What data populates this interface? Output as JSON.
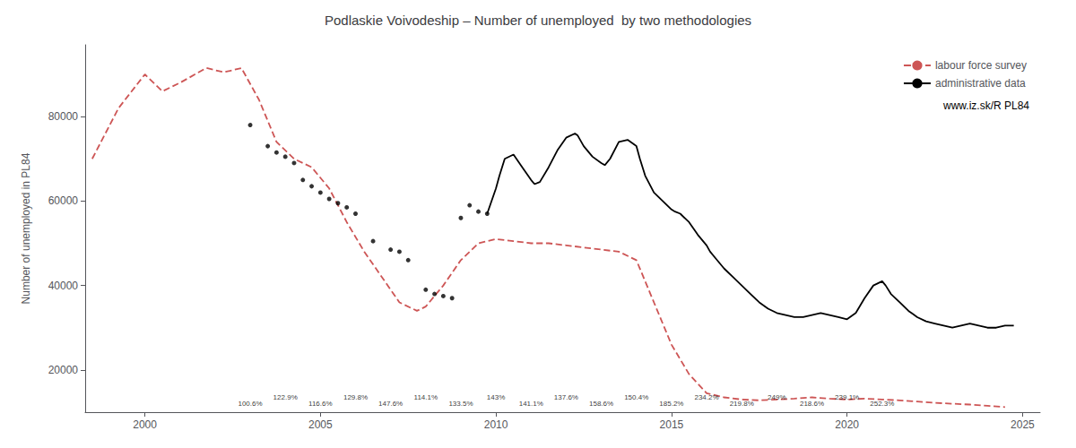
{
  "chart_data": {
    "type": "line",
    "title": "Podlaskie Voivodeship – Number of unemployed  by two methodologies",
    "ylabel": "Number of unemployed in PL84",
    "xlim": [
      1998.3,
      2025.5
    ],
    "ylim": [
      10000,
      97000
    ],
    "xticks": [
      2000,
      2005,
      2010,
      2015,
      2020,
      2025
    ],
    "yticks": [
      20000,
      40000,
      60000,
      80000
    ],
    "grid": false,
    "legend": "upper right",
    "color": "#ffffff",
    "source": "www.iz.sk/R PL84",
    "series": [
      {
        "name": "labour force survey",
        "type": "line",
        "color": "#cd5555",
        "line_style": "dashed",
        "x": [
          1998.5,
          1999.25,
          2000.0,
          2000.5,
          2001.0,
          2001.75,
          2002.25,
          2002.75,
          2003.25,
          2003.75,
          2004.25,
          2004.75,
          2005.25,
          2005.75,
          2006.25,
          2006.75,
          2007.25,
          2007.75,
          2008.0,
          2008.5,
          2009.0,
          2009.5,
          2010.0,
          2010.5,
          2011.0,
          2011.5,
          2012.0,
          2012.5,
          2013.0,
          2013.5,
          2014.0,
          2014.5,
          2015.0,
          2015.5,
          2016.0,
          2016.5,
          2017.0,
          2017.5,
          2018.0,
          2018.5,
          2019.0,
          2019.5,
          2020.0,
          2020.5,
          2021.0,
          2021.5,
          2022.0,
          2022.5,
          2023.0,
          2023.5,
          2024.0,
          2024.5
        ],
        "values": [
          70000,
          82000,
          90000,
          86000,
          88000,
          91500,
          90500,
          91500,
          84000,
          74000,
          70000,
          68000,
          63000,
          55000,
          48000,
          42000,
          36000,
          34000,
          35000,
          40000,
          46000,
          50000,
          51000,
          50500,
          50000,
          50000,
          49500,
          49000,
          48500,
          48000,
          46000,
          36000,
          26000,
          19000,
          14500,
          13500,
          13000,
          12800,
          13000,
          13200,
          13500,
          13200,
          13000,
          13200,
          13000,
          12800,
          12500,
          12200,
          12000,
          11800,
          11500,
          11200
        ]
      },
      {
        "type": "scatter",
        "color": "#000000",
        "marker": "circle",
        "x": [
          2003.0,
          2003.5,
          2003.75,
          2004.0,
          2004.25,
          2004.5,
          2004.75,
          2005.0,
          2005.25,
          2005.5,
          2005.75,
          2006.0,
          2006.5,
          2007.0,
          2007.25,
          2007.5,
          2008.0,
          2008.25,
          2008.5,
          2008.75,
          2009.0,
          2009.25,
          2009.5,
          2009.75
        ],
        "values": [
          78000,
          73000,
          71500,
          70500,
          69000,
          65000,
          63500,
          62000,
          60500,
          59500,
          58500,
          57000,
          50500,
          48500,
          48000,
          46000,
          39000,
          38000,
          37500,
          37000,
          56000,
          59000,
          57500,
          57000
        ]
      },
      {
        "name": "administrative data",
        "type": "line",
        "color": "#000000",
        "line_style": "solid",
        "x": [
          2009.75,
          2010.0,
          2010.1,
          2010.25,
          2010.5,
          2010.75,
          2011.0,
          2011.1,
          2011.25,
          2011.5,
          2011.75,
          2012.0,
          2012.25,
          2012.33,
          2012.5,
          2012.75,
          2013.0,
          2013.1,
          2013.25,
          2013.5,
          2013.75,
          2014.0,
          2014.1,
          2014.25,
          2014.5,
          2014.75,
          2015.0,
          2015.1,
          2015.25,
          2015.5,
          2015.75,
          2016.0,
          2016.1,
          2016.25,
          2016.5,
          2016.75,
          2017.0,
          2017.25,
          2017.5,
          2017.75,
          2018.0,
          2018.25,
          2018.5,
          2018.75,
          2019.0,
          2019.25,
          2019.5,
          2019.75,
          2020.0,
          2020.25,
          2020.5,
          2020.75,
          2021.0,
          2021.1,
          2021.25,
          2021.5,
          2021.75,
          2022.0,
          2022.25,
          2022.5,
          2022.75,
          2023.0,
          2023.25,
          2023.5,
          2023.75,
          2024.0,
          2024.25,
          2024.5,
          2024.75
        ],
        "values": [
          57000,
          63000,
          66000,
          70000,
          71000,
          68000,
          65000,
          64000,
          64500,
          68000,
          72000,
          75000,
          76000,
          75500,
          73000,
          70500,
          69000,
          68500,
          70000,
          74000,
          74500,
          73000,
          70000,
          66000,
          62000,
          60000,
          58000,
          57500,
          57000,
          55000,
          52000,
          49500,
          48000,
          46500,
          44000,
          42000,
          40000,
          38000,
          36000,
          34500,
          33500,
          33000,
          32500,
          32500,
          33000,
          33500,
          33000,
          32500,
          32000,
          33500,
          37000,
          40000,
          41000,
          40000,
          38000,
          36000,
          34000,
          32500,
          31500,
          31000,
          30500,
          30000,
          30500,
          31000,
          30500,
          30000,
          30000,
          30500,
          30500
        ]
      }
    ],
    "annotations": [
      {
        "x": 2003.0,
        "y": 11200,
        "text": "100.6%"
      },
      {
        "x": 2004.0,
        "y": 12600,
        "text": "122.9%"
      },
      {
        "x": 2005.0,
        "y": 11200,
        "text": "116.6%"
      },
      {
        "x": 2006.0,
        "y": 12600,
        "text": "129.8%"
      },
      {
        "x": 2007.0,
        "y": 11200,
        "text": "147.6%"
      },
      {
        "x": 2008.0,
        "y": 12600,
        "text": "114.1%"
      },
      {
        "x": 2009.0,
        "y": 11200,
        "text": "133.5%"
      },
      {
        "x": 2010.0,
        "y": 12600,
        "text": "143%"
      },
      {
        "x": 2011.0,
        "y": 11200,
        "text": "141.1%"
      },
      {
        "x": 2012.0,
        "y": 12600,
        "text": "137.6%"
      },
      {
        "x": 2013.0,
        "y": 11200,
        "text": "158.6%"
      },
      {
        "x": 2014.0,
        "y": 12600,
        "text": "150.4%"
      },
      {
        "x": 2015.0,
        "y": 11200,
        "text": "185.2%"
      },
      {
        "x": 2016.0,
        "y": 12600,
        "text": "234.2%"
      },
      {
        "x": 2017.0,
        "y": 11200,
        "text": "219.8%"
      },
      {
        "x": 2018.0,
        "y": 12600,
        "text": "249%"
      },
      {
        "x": 2019.0,
        "y": 11200,
        "text": "218.6%"
      },
      {
        "x": 2020.0,
        "y": 12600,
        "text": "239.1%"
      },
      {
        "x": 2021.0,
        "y": 11200,
        "text": "252.3%"
      }
    ]
  }
}
